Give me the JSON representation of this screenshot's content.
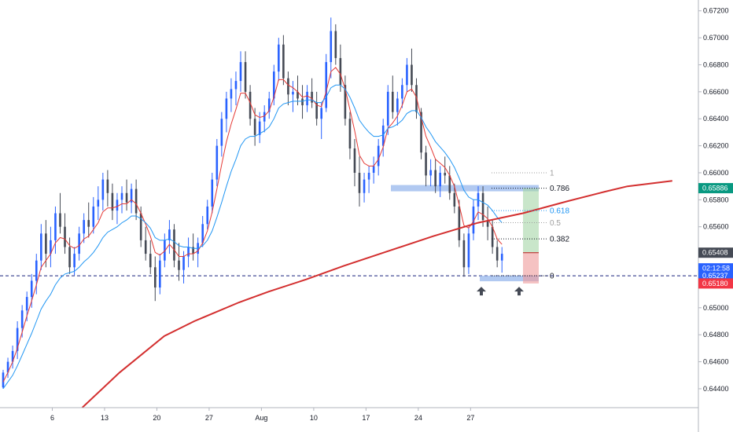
{
  "chart_data": {
    "type": "candlestick",
    "title": "",
    "x_ticks": [
      "6",
      "13",
      "20",
      "27",
      "Aug",
      "10",
      "17",
      "24",
      "27"
    ],
    "y_ticks": [
      "0.67200",
      "0.67000",
      "0.66800",
      "0.66600",
      "0.66400",
      "0.66200",
      "0.66000",
      "0.65800",
      "0.65600",
      "0.65400",
      "0.65200",
      "0.65000",
      "0.64800",
      "0.64600",
      "0.64400"
    ],
    "ylim": [
      0.6426,
      0.6728
    ],
    "x_range_days": [
      0,
      93.5
    ],
    "colors": {
      "up": "#2962ff",
      "down": "#454a55",
      "ema_fast": "#e53935",
      "ema_mid": "#2196f3",
      "ema_slow": "#d32f2f",
      "dashed_line": "#1a237e",
      "zone": "#9dbbee",
      "target": "#a5d6a7",
      "stop": "#ef9a9a"
    },
    "price_tags": [
      {
        "label": "0.65886",
        "value": 0.65886,
        "color": "#089981"
      },
      {
        "label": "0.65408",
        "value": 0.65408,
        "color": "#454a55"
      },
      {
        "label": "02:12:58",
        "value": 0.65292,
        "color": "#2962ff"
      },
      {
        "label": "0.65237",
        "value": 0.65237,
        "color": "#2962ff"
      },
      {
        "label": "0.65180",
        "value": 0.6518,
        "color": "#f23645"
      }
    ],
    "fib_levels": [
      {
        "label": "1",
        "value": 0.66,
        "color": "#9e9e9e"
      },
      {
        "label": "0.786",
        "value": 0.65886,
        "color": "#131722"
      },
      {
        "label": "0.618",
        "value": 0.6572,
        "color": "#2196f3"
      },
      {
        "label": "0.5",
        "value": 0.6563,
        "color": "#9e9e9e"
      },
      {
        "label": "0.382",
        "value": 0.6551,
        "color": "#131722"
      },
      {
        "label": "0",
        "value": 0.65237,
        "color": "#131722"
      }
    ],
    "series": [
      {
        "name": "",
        "kind": "candles",
        "ohlc": [
          [
            0.6441,
            0.6454,
            0.644,
            0.6452
          ],
          [
            0.6452,
            0.6463,
            0.6448,
            0.646
          ],
          [
            0.646,
            0.6472,
            0.6455,
            0.6468
          ],
          [
            0.6468,
            0.649,
            0.6462,
            0.6485
          ],
          [
            0.6485,
            0.6502,
            0.6478,
            0.6498
          ],
          [
            0.6498,
            0.6512,
            0.649,
            0.6508
          ],
          [
            0.6508,
            0.6525,
            0.65,
            0.652
          ],
          [
            0.652,
            0.654,
            0.651,
            0.6535
          ],
          [
            0.6535,
            0.6562,
            0.6528,
            0.6555
          ],
          [
            0.6555,
            0.6565,
            0.653,
            0.654
          ],
          [
            0.654,
            0.656,
            0.653,
            0.655
          ],
          [
            0.655,
            0.6575,
            0.654,
            0.657
          ],
          [
            0.657,
            0.6585,
            0.6555,
            0.656
          ],
          [
            0.656,
            0.657,
            0.654,
            0.6545
          ],
          [
            0.6545,
            0.6552,
            0.6525,
            0.653
          ],
          [
            0.653,
            0.6545,
            0.6524,
            0.654
          ],
          [
            0.654,
            0.656,
            0.6535,
            0.6555
          ],
          [
            0.6555,
            0.657,
            0.6548,
            0.6565
          ],
          [
            0.6565,
            0.6578,
            0.6552,
            0.656
          ],
          [
            0.656,
            0.6582,
            0.6555,
            0.6575
          ],
          [
            0.6575,
            0.659,
            0.6565,
            0.658
          ],
          [
            0.658,
            0.66,
            0.6572,
            0.6595
          ],
          [
            0.6595,
            0.6602,
            0.6575,
            0.6585
          ],
          [
            0.6585,
            0.6592,
            0.6565,
            0.6572
          ],
          [
            0.6572,
            0.6585,
            0.6562,
            0.658
          ],
          [
            0.658,
            0.659,
            0.657,
            0.6585
          ],
          [
            0.6585,
            0.6595,
            0.6572,
            0.6578
          ],
          [
            0.6578,
            0.6592,
            0.657,
            0.6588
          ],
          [
            0.6588,
            0.6595,
            0.6565,
            0.657
          ],
          [
            0.657,
            0.6575,
            0.6545,
            0.655
          ],
          [
            0.655,
            0.656,
            0.6535,
            0.654
          ],
          [
            0.654,
            0.655,
            0.6525,
            0.653
          ],
          [
            0.653,
            0.6538,
            0.6505,
            0.6515
          ],
          [
            0.6515,
            0.654,
            0.651,
            0.6535
          ],
          [
            0.6535,
            0.6555,
            0.653,
            0.655
          ],
          [
            0.655,
            0.6565,
            0.654,
            0.6558
          ],
          [
            0.6558,
            0.6562,
            0.653,
            0.6535
          ],
          [
            0.6535,
            0.6548,
            0.652,
            0.6528
          ],
          [
            0.6528,
            0.6542,
            0.6518,
            0.6538
          ],
          [
            0.6538,
            0.6552,
            0.653,
            0.6545
          ],
          [
            0.6545,
            0.6555,
            0.6535,
            0.654
          ],
          [
            0.654,
            0.6552,
            0.653,
            0.6548
          ],
          [
            0.6548,
            0.6568,
            0.6545,
            0.6562
          ],
          [
            0.6562,
            0.658,
            0.6558,
            0.6575
          ],
          [
            0.6575,
            0.66,
            0.657,
            0.6595
          ],
          [
            0.6595,
            0.6625,
            0.659,
            0.662
          ],
          [
            0.662,
            0.6645,
            0.6612,
            0.664
          ],
          [
            0.664,
            0.666,
            0.663,
            0.6655
          ],
          [
            0.6655,
            0.667,
            0.6645,
            0.6662
          ],
          [
            0.6662,
            0.6675,
            0.665,
            0.6668
          ],
          [
            0.6668,
            0.669,
            0.666,
            0.6682
          ],
          [
            0.6682,
            0.669,
            0.6655,
            0.666
          ],
          [
            0.666,
            0.6665,
            0.6635,
            0.664
          ],
          [
            0.664,
            0.6648,
            0.662,
            0.6628
          ],
          [
            0.6628,
            0.6645,
            0.6622,
            0.6638
          ],
          [
            0.6638,
            0.665,
            0.663,
            0.6645
          ],
          [
            0.6645,
            0.666,
            0.664,
            0.6655
          ],
          [
            0.6655,
            0.668,
            0.665,
            0.6675
          ],
          [
            0.6675,
            0.67,
            0.6668,
            0.6695
          ],
          [
            0.6695,
            0.6702,
            0.6665,
            0.667
          ],
          [
            0.667,
            0.6675,
            0.665,
            0.6658
          ],
          [
            0.6658,
            0.6668,
            0.6645,
            0.666
          ],
          [
            0.666,
            0.6672,
            0.665,
            0.6655
          ],
          [
            0.6655,
            0.6665,
            0.664,
            0.665
          ],
          [
            0.665,
            0.6665,
            0.6645,
            0.666
          ],
          [
            0.666,
            0.667,
            0.6648,
            0.6652
          ],
          [
            0.6652,
            0.666,
            0.6635,
            0.664
          ],
          [
            0.664,
            0.6652,
            0.6625,
            0.6648
          ],
          [
            0.6648,
            0.6688,
            0.6645,
            0.6682
          ],
          [
            0.6682,
            0.6715,
            0.667,
            0.6705
          ],
          [
            0.6705,
            0.671,
            0.668,
            0.6685
          ],
          [
            0.6685,
            0.6695,
            0.666,
            0.6665
          ],
          [
            0.6665,
            0.6672,
            0.6635,
            0.664
          ],
          [
            0.664,
            0.6645,
            0.661,
            0.6618
          ],
          [
            0.6618,
            0.6625,
            0.659,
            0.66
          ],
          [
            0.66,
            0.6612,
            0.6575,
            0.6585
          ],
          [
            0.6585,
            0.66,
            0.6578,
            0.6595
          ],
          [
            0.6595,
            0.6605,
            0.6585,
            0.66
          ],
          [
            0.66,
            0.6612,
            0.6592,
            0.6605
          ],
          [
            0.6605,
            0.6625,
            0.6598,
            0.662
          ],
          [
            0.662,
            0.664,
            0.6612,
            0.6635
          ],
          [
            0.6635,
            0.6665,
            0.6628,
            0.666
          ],
          [
            0.666,
            0.6672,
            0.664,
            0.6645
          ],
          [
            0.6645,
            0.666,
            0.6635,
            0.6655
          ],
          [
            0.6655,
            0.667,
            0.6648,
            0.6665
          ],
          [
            0.6665,
            0.6685,
            0.666,
            0.668
          ],
          [
            0.668,
            0.6692,
            0.666,
            0.6665
          ],
          [
            0.6665,
            0.667,
            0.664,
            0.6645
          ],
          [
            0.6645,
            0.6648,
            0.661,
            0.6615
          ],
          [
            0.6615,
            0.662,
            0.659,
            0.6598
          ],
          [
            0.6598,
            0.661,
            0.659,
            0.6602
          ],
          [
            0.6602,
            0.661,
            0.6585,
            0.659
          ],
          [
            0.659,
            0.6605,
            0.6582,
            0.66
          ],
          [
            0.66,
            0.6612,
            0.6592,
            0.6598
          ],
          [
            0.6598,
            0.6605,
            0.658,
            0.6585
          ],
          [
            0.6585,
            0.6592,
            0.657,
            0.6575
          ],
          [
            0.6575,
            0.658,
            0.6545,
            0.655
          ],
          [
            0.655,
            0.6555,
            0.6523,
            0.653
          ],
          [
            0.653,
            0.656,
            0.6525,
            0.6555
          ],
          [
            0.6555,
            0.658,
            0.655,
            0.6575
          ],
          [
            0.6575,
            0.659,
            0.6565,
            0.6585
          ],
          [
            0.6585,
            0.659,
            0.656,
            0.6565
          ],
          [
            0.6565,
            0.6575,
            0.655,
            0.656
          ],
          [
            0.656,
            0.6565,
            0.654,
            0.6545
          ],
          [
            0.6545,
            0.655,
            0.653,
            0.6535
          ],
          [
            0.6535,
            0.6545,
            0.6526,
            0.654
          ]
        ]
      },
      {
        "name": "",
        "kind": "line",
        "color": "#e53935",
        "values": [
          0.6445,
          0.6452,
          0.646,
          0.647,
          0.6482,
          0.6494,
          0.6505,
          0.6517,
          0.653,
          0.6535,
          0.654,
          0.6548,
          0.6552,
          0.6551,
          0.6546,
          0.6544,
          0.6546,
          0.6551,
          0.6553,
          0.6558,
          0.6563,
          0.6571,
          0.6574,
          0.6574,
          0.6575,
          0.6577,
          0.6577,
          0.658,
          0.6577,
          0.657,
          0.6562,
          0.6553,
          0.6541,
          0.6539,
          0.6542,
          0.6547,
          0.6543,
          0.6538,
          0.6538,
          0.654,
          0.654,
          0.6542,
          0.6548,
          0.6557,
          0.6571,
          0.6588,
          0.6606,
          0.6623,
          0.6636,
          0.6647,
          0.6659,
          0.6659,
          0.6652,
          0.6643,
          0.6641,
          0.6642,
          0.6646,
          0.6656,
          0.6669,
          0.6669,
          0.6665,
          0.6663,
          0.666,
          0.6656,
          0.6657,
          0.6655,
          0.665,
          0.6649,
          0.666,
          0.6675,
          0.6678,
          0.6673,
          0.6662,
          0.6647,
          0.6631,
          0.6613,
          0.6607,
          0.6605,
          0.6605,
          0.661,
          0.6619,
          0.6633,
          0.6637,
          0.6642,
          0.665,
          0.666,
          0.6662,
          0.6656,
          0.6641,
          0.6627,
          0.6619,
          0.661,
          0.6607,
          0.6604,
          0.6598,
          0.659,
          0.6576,
          0.6561,
          0.6559,
          0.6564,
          0.6571,
          0.6569,
          0.6566,
          0.656,
          0.6551,
          0.6547
        ]
      },
      {
        "name": "",
        "kind": "line",
        "color": "#2196f3",
        "values": [
          0.644,
          0.6445,
          0.645,
          0.6457,
          0.6465,
          0.6473,
          0.6481,
          0.649,
          0.6499,
          0.6505,
          0.651,
          0.6517,
          0.6522,
          0.6525,
          0.6526,
          0.6527,
          0.653,
          0.6534,
          0.6537,
          0.6541,
          0.6546,
          0.6552,
          0.6556,
          0.6558,
          0.656,
          0.6563,
          0.6565,
          0.6568,
          0.6568,
          0.6566,
          0.6563,
          0.6559,
          0.6552,
          0.655,
          0.655,
          0.6551,
          0.6549,
          0.6546,
          0.6545,
          0.6545,
          0.6544,
          0.6544,
          0.6546,
          0.655,
          0.6557,
          0.6567,
          0.6578,
          0.659,
          0.6601,
          0.661,
          0.662,
          0.6625,
          0.6627,
          0.6627,
          0.6629,
          0.6631,
          0.6634,
          0.664,
          0.6648,
          0.6651,
          0.6652,
          0.6653,
          0.6653,
          0.6653,
          0.6654,
          0.6654,
          0.6652,
          0.6652,
          0.6656,
          0.6663,
          0.6665,
          0.6665,
          0.6662,
          0.6656,
          0.6648,
          0.6639,
          0.6634,
          0.663,
          0.6627,
          0.6627,
          0.6628,
          0.6633,
          0.6634,
          0.6636,
          0.6639,
          0.6644,
          0.6646,
          0.6646,
          0.6641,
          0.6634,
          0.6629,
          0.6623,
          0.6619,
          0.6615,
          0.661,
          0.6604,
          0.6596,
          0.6587,
          0.6582,
          0.658,
          0.658,
          0.6578,
          0.6576,
          0.6572,
          0.6567,
          0.6563
        ]
      },
      {
        "name": "",
        "kind": "line",
        "color": "#d32f2f",
        "x_days": [
          11,
          16,
          22,
          26,
          32,
          36,
          41,
          46,
          52,
          58,
          64,
          70,
          76,
          81,
          84,
          87,
          90
        ],
        "values": [
          0.6426,
          0.6452,
          0.6479,
          0.649,
          0.6504,
          0.6512,
          0.6521,
          0.6531,
          0.6542,
          0.6553,
          0.6563,
          0.657,
          0.6579,
          0.6586,
          0.659,
          0.6592,
          0.6594
        ]
      }
    ]
  }
}
